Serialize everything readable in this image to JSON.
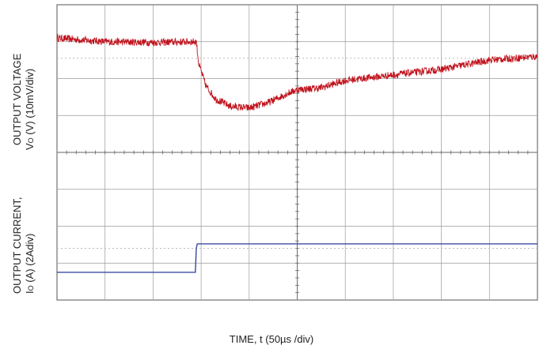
{
  "chart_data": {
    "type": "line",
    "x_divisions": 10,
    "y_divisions": 8,
    "grid": true,
    "x_unit_per_div": "50µs",
    "xlabel": "TIME, t (50µs /div)",
    "ylabels": [
      {
        "line1": "OUTPUT VOLTAGE",
        "line2_prefix": "V",
        "line2_sub": "O",
        "line2_rest": " (V) (10mV/div)"
      },
      {
        "line1": "OUTPUT CURRENT,",
        "line2_prefix": "I",
        "line2_sub": "O",
        "line2_rest": " (A)  (2Adiv)"
      }
    ],
    "series": [
      {
        "color": "#c0121c",
        "noise_div": 0.1,
        "x_div": [
          0,
          1,
          2,
          2.9,
          2.95,
          3.1,
          3.3,
          3.6,
          4.0,
          4.4,
          4.8,
          5.0,
          5.5,
          6.0,
          7.0,
          8.0,
          9.0,
          10.0
        ],
        "y_div": [
          3.1,
          3.0,
          2.98,
          3.0,
          2.4,
          1.8,
          1.45,
          1.25,
          1.2,
          1.35,
          1.6,
          1.7,
          1.75,
          1.95,
          2.1,
          2.25,
          2.5,
          2.6
        ]
      },
      {
        "color": "#2a3a9a",
        "x_div": [
          0,
          2.88,
          2.9,
          2.92,
          10.0
        ],
        "y_div": [
          -3.25,
          -3.25,
          -2.6,
          -2.48,
          -2.48
        ]
      }
    ],
    "dotted_reference_lines_y_div": [
      2.55,
      -2.6
    ]
  }
}
